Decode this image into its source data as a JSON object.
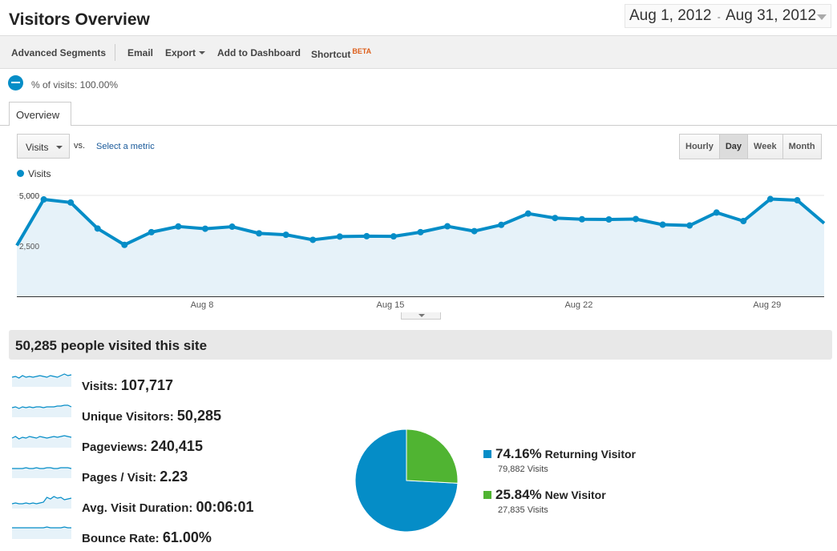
{
  "header": {
    "title": "Visitors Overview",
    "date_start": "Aug 1, 2012",
    "date_sep": "-",
    "date_end": "Aug 31, 2012"
  },
  "toolbar": {
    "advanced_segments": "Advanced Segments",
    "email": "Email",
    "export": "Export",
    "add_to_dashboard": "Add to Dashboard",
    "shortcut": "Shortcut",
    "beta": "BETA"
  },
  "segment": {
    "label": "% of visits: 100.00%"
  },
  "tabs": {
    "overview": "Overview"
  },
  "controls": {
    "metric": "Visits",
    "vs": "vs.",
    "select_metric": "Select a metric",
    "periods": [
      "Hourly",
      "Day",
      "Week",
      "Month"
    ],
    "active_period": "Day"
  },
  "colors": {
    "accent": "#058dc7",
    "area": "#e6f2f9",
    "new_visitor": "#50b432"
  },
  "chart_data": {
    "type": "area",
    "series": [
      {
        "name": "Visits",
        "values": [
          2520,
          4800,
          4650,
          3360,
          2550,
          3180,
          3460,
          3350,
          3450,
          3120,
          3050,
          2800,
          2960,
          2980,
          2970,
          3180,
          3470,
          3230,
          3540,
          4100,
          3880,
          3820,
          3810,
          3830,
          3550,
          3510,
          4150,
          3730,
          4820,
          4760,
          3620
        ]
      }
    ],
    "x": [
      1,
      2,
      3,
      4,
      5,
      6,
      7,
      8,
      9,
      10,
      11,
      12,
      13,
      14,
      15,
      16,
      17,
      18,
      19,
      20,
      21,
      22,
      23,
      24,
      25,
      26,
      27,
      28,
      29,
      30,
      31
    ],
    "x_tick_labels": [
      "Aug 8",
      "Aug 15",
      "Aug 22",
      "Aug 29"
    ],
    "x_tick_days": [
      8,
      15,
      22,
      29
    ],
    "y_tick_labels": [
      "5,000",
      "2,500"
    ],
    "y_ticks": [
      5000,
      2500
    ],
    "ylim": [
      0,
      5000
    ],
    "legend": "top-left",
    "grid": true
  },
  "summary": {
    "text": "50,285 people visited this site"
  },
  "metrics": [
    {
      "label": "Visits:",
      "value": "107,717"
    },
    {
      "label": "Unique Visitors:",
      "value": "50,285"
    },
    {
      "label": "Pageviews:",
      "value": "240,415"
    },
    {
      "label": "Pages / Visit:",
      "value": "2.23"
    },
    {
      "label": "Avg. Visit Duration:",
      "value": "00:06:01"
    },
    {
      "label": "Bounce Rate:",
      "value": "61.00%"
    }
  ],
  "pie": {
    "slices": [
      {
        "pct": "74.16%",
        "fraction": 0.7416,
        "name": "Returning Visitor",
        "visits": "79,882 Visits",
        "color": "#058dc7"
      },
      {
        "pct": "25.84%",
        "fraction": 0.2584,
        "name": "New Visitor",
        "visits": "27,835 Visits",
        "color": "#50b432"
      }
    ]
  }
}
